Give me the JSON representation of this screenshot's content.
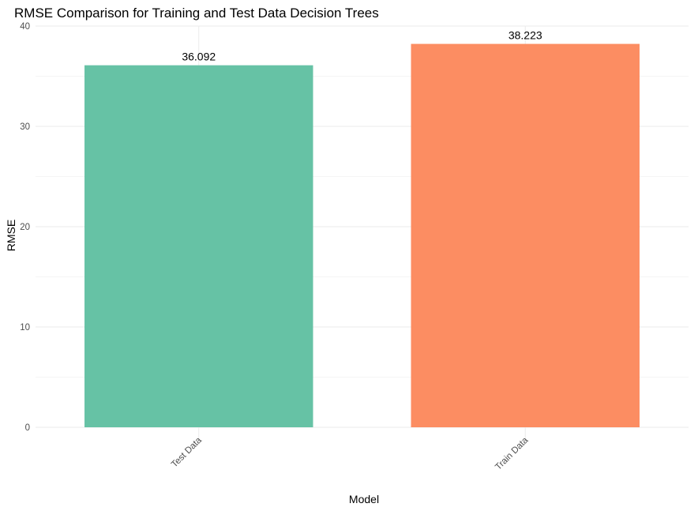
{
  "chart_data": {
    "type": "bar",
    "title": "RMSE Comparison for Training and Test Data Decision Trees",
    "xlabel": "Model",
    "ylabel": "RMSE",
    "categories": [
      "Test Data",
      "Train Data"
    ],
    "values": [
      36.092,
      38.223
    ],
    "value_labels": [
      "36.092",
      "38.223"
    ],
    "colors": [
      "#66c2a5",
      "#fc8d62"
    ],
    "ylim": [
      0,
      40
    ],
    "yticks": [
      0,
      10,
      20,
      30,
      40
    ],
    "grid": true,
    "legend": "none"
  }
}
